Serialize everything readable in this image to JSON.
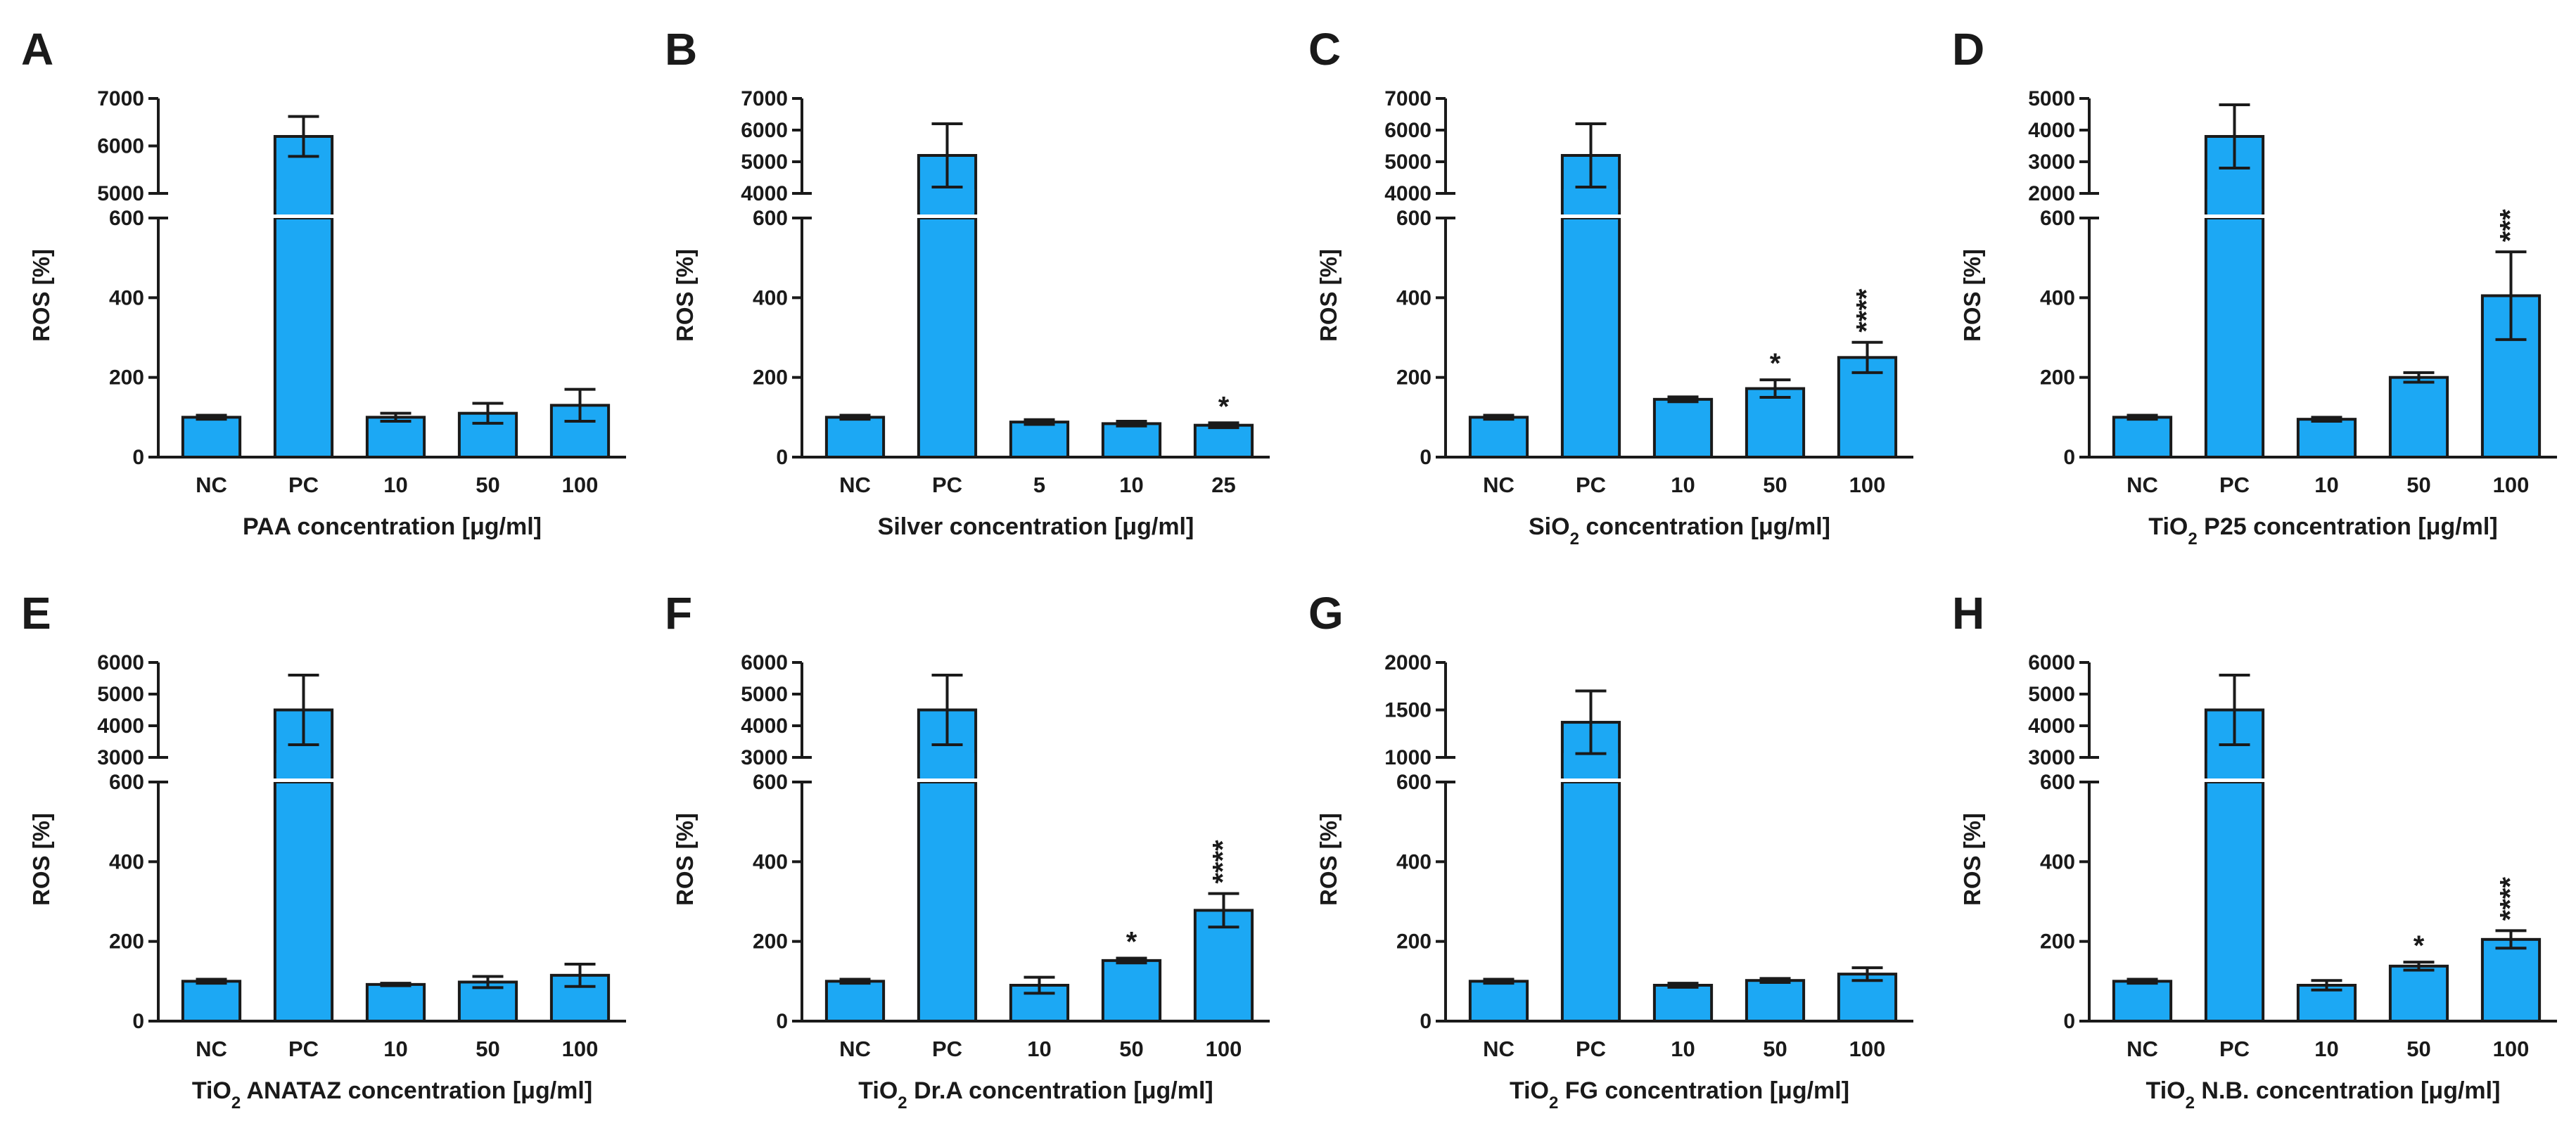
{
  "style": {
    "bar_color": "#1ca8f4",
    "stroke_color": "#1a1a1a",
    "background": "#ffffff"
  },
  "chart_data": [
    {
      "panel": "A",
      "type": "bar",
      "categories": [
        "NC",
        "PC",
        "10",
        "50",
        "100"
      ],
      "values": [
        100,
        6200,
        100,
        110,
        130
      ],
      "errors": [
        5,
        420,
        10,
        25,
        40
      ],
      "significance": [
        "",
        "",
        "",
        "",
        ""
      ],
      "xlabel": "PAA concentration [μg/ml]",
      "ylabel": "ROS [%]",
      "lower_axis": {
        "range": [
          0,
          600
        ],
        "ticks": [
          "0",
          "200",
          "400",
          "600"
        ]
      },
      "upper_axis": {
        "range": [
          5000,
          7000
        ],
        "ticks": [
          "5000",
          "6000",
          "7000"
        ]
      }
    },
    {
      "panel": "B",
      "type": "bar",
      "categories": [
        "NC",
        "PC",
        "5",
        "10",
        "25"
      ],
      "values": [
        100,
        5200,
        88,
        84,
        80
      ],
      "errors": [
        5,
        1000,
        6,
        6,
        6
      ],
      "significance": [
        "",
        "",
        "",
        "",
        "*"
      ],
      "xlabel": "Silver concentration [μg/ml]",
      "ylabel": "ROS [%]",
      "lower_axis": {
        "range": [
          0,
          600
        ],
        "ticks": [
          "0",
          "200",
          "400",
          "600"
        ]
      },
      "upper_axis": {
        "range": [
          4000,
          7000
        ],
        "ticks": [
          "4000",
          "5000",
          "6000",
          "7000"
        ]
      }
    },
    {
      "panel": "C",
      "type": "bar",
      "categories": [
        "NC",
        "PC",
        "10",
        "50",
        "100"
      ],
      "values": [
        100,
        5200,
        145,
        172,
        250
      ],
      "errors": [
        5,
        1000,
        6,
        22,
        38
      ],
      "significance": [
        "",
        "",
        "",
        "*",
        "****"
      ],
      "xlabel": "SiO2 concentration [μg/ml]",
      "ylabel": "ROS [%]",
      "lower_axis": {
        "range": [
          0,
          600
        ],
        "ticks": [
          "0",
          "200",
          "400",
          "600"
        ]
      },
      "upper_axis": {
        "range": [
          4000,
          7000
        ],
        "ticks": [
          "4000",
          "5000",
          "6000",
          "7000"
        ]
      }
    },
    {
      "panel": "D",
      "type": "bar",
      "categories": [
        "NC",
        "PC",
        "10",
        "50",
        "100"
      ],
      "values": [
        100,
        3800,
        95,
        200,
        405
      ],
      "errors": [
        5,
        1000,
        5,
        12,
        110
      ],
      "significance": [
        "",
        "",
        "",
        "",
        "***"
      ],
      "xlabel": "TiO2 P25 concentration [μg/ml]",
      "ylabel": "ROS [%]",
      "lower_axis": {
        "range": [
          0,
          600
        ],
        "ticks": [
          "0",
          "200",
          "400",
          "600"
        ]
      },
      "upper_axis": {
        "range": [
          2000,
          5000
        ],
        "ticks": [
          "2000",
          "3000",
          "4000",
          "5000"
        ]
      }
    },
    {
      "panel": "E",
      "type": "bar",
      "categories": [
        "NC",
        "PC",
        "10",
        "50",
        "100"
      ],
      "values": [
        100,
        4500,
        92,
        98,
        115
      ],
      "errors": [
        5,
        1100,
        3,
        14,
        28
      ],
      "significance": [
        "",
        "",
        "",
        "",
        ""
      ],
      "xlabel": "TiO2 ANATAZ concentration [μg/ml]",
      "ylabel": "ROS [%]",
      "lower_axis": {
        "range": [
          0,
          600
        ],
        "ticks": [
          "0",
          "200",
          "400",
          "600"
        ]
      },
      "upper_axis": {
        "range": [
          3000,
          6000
        ],
        "ticks": [
          "3000",
          "4000",
          "5000",
          "6000"
        ]
      }
    },
    {
      "panel": "F",
      "type": "bar",
      "categories": [
        "NC",
        "PC",
        "10",
        "50",
        "100"
      ],
      "values": [
        100,
        4500,
        90,
        152,
        278
      ],
      "errors": [
        5,
        1100,
        20,
        6,
        42
      ],
      "significance": [
        "",
        "",
        "",
        "*",
        "****"
      ],
      "xlabel": "TiO2 Dr.A concentration [μg/ml]",
      "ylabel": "ROS [%]",
      "lower_axis": {
        "range": [
          0,
          600
        ],
        "ticks": [
          "0",
          "200",
          "400",
          "600"
        ]
      },
      "upper_axis": {
        "range": [
          3000,
          6000
        ],
        "ticks": [
          "3000",
          "4000",
          "5000",
          "6000"
        ]
      }
    },
    {
      "panel": "G",
      "type": "bar",
      "categories": [
        "NC",
        "PC",
        "10",
        "50",
        "100"
      ],
      "values": [
        100,
        1370,
        90,
        102,
        118
      ],
      "errors": [
        5,
        330,
        5,
        5,
        16
      ],
      "significance": [
        "",
        "",
        "",
        "",
        ""
      ],
      "xlabel": "TiO2 FG concentration [μg/ml]",
      "ylabel": "ROS [%]",
      "lower_axis": {
        "range": [
          0,
          600
        ],
        "ticks": [
          "0",
          "200",
          "400",
          "600"
        ]
      },
      "upper_axis": {
        "range": [
          1000,
          2000
        ],
        "ticks": [
          "1000",
          "1500",
          "2000"
        ]
      }
    },
    {
      "panel": "H",
      "type": "bar",
      "categories": [
        "NC",
        "PC",
        "10",
        "50",
        "100"
      ],
      "values": [
        100,
        4500,
        90,
        138,
        205
      ],
      "errors": [
        5,
        1100,
        12,
        10,
        22
      ],
      "significance": [
        "",
        "",
        "",
        "*",
        "****"
      ],
      "xlabel": "TiO2 N.B. concentration [μg/ml]",
      "ylabel": "ROS [%]",
      "lower_axis": {
        "range": [
          0,
          600
        ],
        "ticks": [
          "0",
          "200",
          "400",
          "600"
        ]
      },
      "upper_axis": {
        "range": [
          3000,
          6000
        ],
        "ticks": [
          "3000",
          "4000",
          "5000",
          "6000"
        ]
      }
    }
  ]
}
